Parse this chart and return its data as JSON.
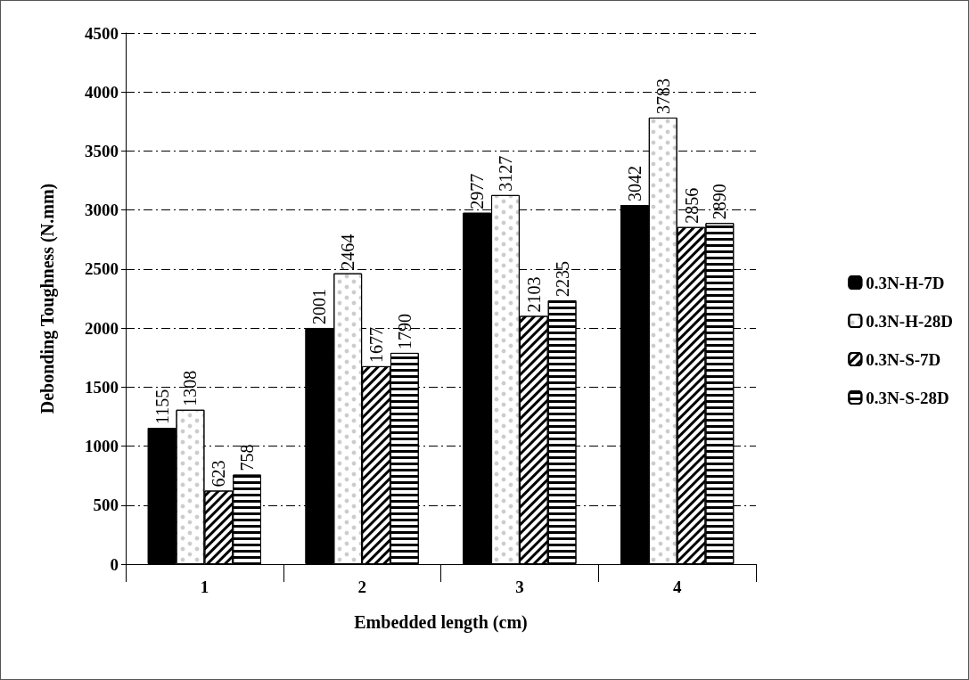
{
  "chart_data": {
    "type": "bar",
    "xlabel": "Embedded length (cm)",
    "ylabel": "Debonding Toughness (N.mm)",
    "categories": [
      "1",
      "2",
      "3",
      "4"
    ],
    "series": [
      {
        "name": "0.3N-H-7D",
        "color": "#000000",
        "values": [
          1155,
          2001,
          2977,
          3042
        ]
      },
      {
        "name": "0.3N-H-28D",
        "color": "#ffffff",
        "values": [
          1308,
          2464,
          3127,
          3783
        ]
      },
      {
        "name": "0.3N-S-7D",
        "color": "#000000",
        "values": [
          623,
          1677,
          2103,
          2856
        ]
      },
      {
        "name": "0.3N-S-28D",
        "color": "#000000",
        "values": [
          758,
          1790,
          2235,
          2890
        ]
      }
    ],
    "ylim": [
      0,
      4500
    ],
    "yticks": [
      0,
      500,
      1000,
      1500,
      2000,
      2500,
      3000,
      3500,
      4000,
      4500
    ],
    "grid": "y",
    "legend": "right",
    "data_labels": true
  }
}
